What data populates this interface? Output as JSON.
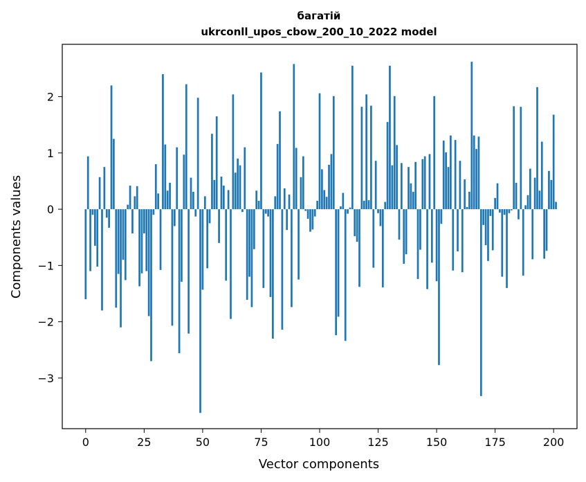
{
  "chart_data": {
    "type": "bar",
    "title_line1": "багатій",
    "title_line2": "ukrconll_upos_cbow_200_10_2022 model",
    "xlabel": "Vector components",
    "ylabel": "Components values",
    "xlim": [
      -10,
      210
    ],
    "ylim": [
      -3.9,
      2.93
    ],
    "xticks": [
      0,
      25,
      50,
      75,
      100,
      125,
      150,
      175,
      200
    ],
    "yticks": [
      -3,
      -2,
      -1,
      0,
      1,
      2
    ],
    "xtick_labels": [
      "0",
      "25",
      "50",
      "75",
      "100",
      "125",
      "150",
      "175",
      "200"
    ],
    "ytick_labels": [
      "−3",
      "−2",
      "−1",
      "0",
      "1",
      "2"
    ],
    "bar_color": "#1f77b4",
    "grid": false,
    "values": [
      -1.6,
      0.94,
      -1.1,
      -0.1,
      -0.65,
      -1.02,
      0.57,
      -1.8,
      0.75,
      -0.15,
      -0.33,
      2.2,
      1.25,
      -1.75,
      -1.15,
      -2.1,
      -0.9,
      -1.26,
      0.08,
      0.42,
      -0.43,
      0.23,
      0.41,
      -1.37,
      -1.14,
      -0.43,
      -1.1,
      -1.9,
      -2.7,
      -0.1,
      0.8,
      0.28,
      -1.08,
      2.4,
      1.15,
      0.33,
      0.47,
      -2.07,
      -0.3,
      1.1,
      -2.56,
      -1.29,
      0.97,
      2.22,
      -2.21,
      0.56,
      0.31,
      -0.13,
      1.98,
      -3.62,
      -1.43,
      0.23,
      -1.05,
      -0.25,
      1.34,
      0.52,
      1.65,
      -0.6,
      0.58,
      0.42,
      -1.27,
      0.34,
      -1.95,
      2.04,
      0.65,
      0.9,
      0.78,
      -0.05,
      1.1,
      -1.61,
      -1.2,
      -1.74,
      -0.71,
      0.33,
      0.15,
      2.43,
      -1.4,
      -0.08,
      -0.13,
      -1.56,
      -2.3,
      0.23,
      1.16,
      1.74,
      -2.14,
      0.37,
      -0.37,
      0.26,
      -1.74,
      2.58,
      1.09,
      -1.25,
      0.57,
      0.94,
      -0.03,
      -0.17,
      -0.4,
      -0.36,
      -0.13,
      0.15,
      2.06,
      0.71,
      0.34,
      0.22,
      0.79,
      0.98,
      2.01,
      -2.24,
      -1.91,
      0.05,
      0.29,
      -2.34,
      -0.08,
      0.03,
      2.55,
      -0.48,
      -0.58,
      -1.38,
      1.82,
      0.15,
      2.04,
      0.16,
      1.84,
      -1.04,
      0.86,
      -0.07,
      -0.3,
      -1.39,
      0.13,
      1.55,
      2.55,
      0.78,
      2.01,
      1.14,
      -0.54,
      0.82,
      -0.97,
      -0.8,
      0.75,
      0.46,
      0.31,
      0.84,
      -1.24,
      -0.72,
      0.89,
      0.94,
      -1.42,
      0.98,
      -0.95,
      2.01,
      -1.28,
      -2.77,
      -0.26,
      1.22,
      1.01,
      0.75,
      1.31,
      -1.09,
      1.23,
      -0.75,
      0.86,
      -1.12,
      0.53,
      0.04,
      0.31,
      2.62,
      1.31,
      1.07,
      1.29,
      -3.32,
      -0.28,
      -0.64,
      -0.92,
      -0.12,
      -0.73,
      0.2,
      0.46,
      -0.06,
      -1.2,
      -0.1,
      -1.4,
      -0.07,
      -0.02,
      1.83,
      0.47,
      -0.18,
      1.82,
      -1.18,
      0.07,
      0.25,
      0.72,
      -0.89,
      0.56,
      2.17,
      0.33,
      1.2,
      -0.88,
      -0.74,
      0.68,
      0.52,
      1.68,
      0.13
    ]
  }
}
